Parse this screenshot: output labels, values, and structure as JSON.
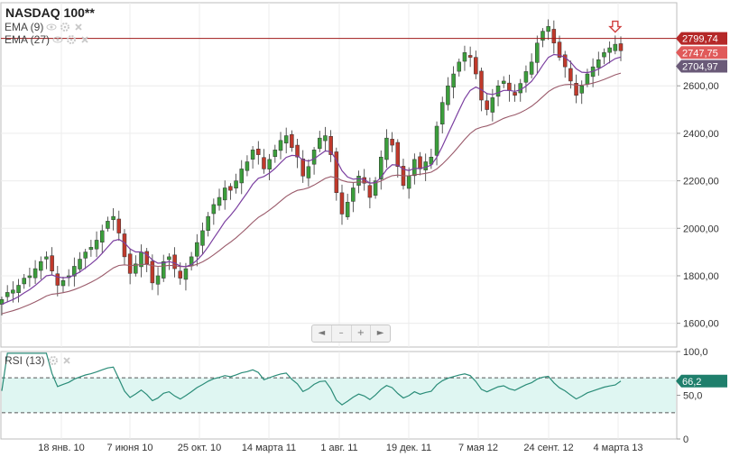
{
  "header": {
    "title": "NASDAQ 100**",
    "indicators": [
      "EMA (9)",
      "EMA (27)"
    ],
    "rsi_label": "RSI (13)"
  },
  "navigator": {
    "prev": "◄",
    "zoom_out": "–",
    "zoom_in": "+",
    "next": "►"
  },
  "colors": {
    "up": "#3b9e3b",
    "down": "#c0392b",
    "ema9": "#7b3fa0",
    "ema27": "#9a5a6a",
    "rsi": "#2a8c78",
    "rsi_band": "#dff6f2",
    "ref_line": "#a01818",
    "tag_ref": "#b52828",
    "tag_close": "#e05a5a",
    "tag_ema": "#6a5a78",
    "tag_rsi": "#1f7f6c"
  },
  "chart_data": [
    {
      "type": "candlestick",
      "title": "NASDAQ 100**",
      "ylim": [
        1500,
        2950
      ],
      "y_ticks": [
        "1600,00",
        "1800,00",
        "2000,00",
        "2200,00",
        "2400,00",
        "2600,00"
      ],
      "x_ticks": [
        "18 янв. 10",
        "7 июня 10",
        "25 окт. 10",
        "14 марта 11",
        "1 авг. 11",
        "19 дек. 11",
        "7 мая 12",
        "24 сент. 12",
        "4 марта 13"
      ],
      "series": [
        {
          "name": "EMA (9)"
        },
        {
          "name": "EMA (27)"
        }
      ],
      "close": [
        1700,
        1730,
        1740,
        1760,
        1790,
        1800,
        1830,
        1860,
        1880,
        1820,
        1760,
        1780,
        1800,
        1840,
        1870,
        1900,
        1920,
        1950,
        1990,
        2030,
        2050,
        1980,
        1880,
        1810,
        1850,
        1900,
        1850,
        1770,
        1800,
        1860,
        1880,
        1830,
        1790,
        1830,
        1880,
        1940,
        1990,
        2050,
        2100,
        2130,
        2170,
        2160,
        2200,
        2250,
        2280,
        2330,
        2310,
        2250,
        2290,
        2330,
        2370,
        2390,
        2340,
        2300,
        2220,
        2260,
        2330,
        2380,
        2390,
        2310,
        2150,
        2060,
        2110,
        2170,
        2220,
        2190,
        2130,
        2200,
        2300,
        2380,
        2350,
        2260,
        2180,
        2220,
        2290,
        2250,
        2280,
        2300,
        2430,
        2530,
        2600,
        2650,
        2700,
        2740,
        2720,
        2650,
        2540,
        2500,
        2550,
        2600,
        2620,
        2580,
        2560,
        2610,
        2660,
        2700,
        2780,
        2830,
        2850,
        2780,
        2720,
        2680,
        2620,
        2560,
        2600,
        2650,
        2680,
        2710,
        2740,
        2760,
        2775,
        2747.75
      ],
      "last_close": "2747,75",
      "ema9_last": "2704,97",
      "reference_level": 2799.74,
      "reference_label": "2799,74"
    },
    {
      "type": "line",
      "title": "RSI (13)",
      "ylim": [
        0,
        100
      ],
      "y_ticks": [
        "0",
        "50,0",
        "100,0"
      ],
      "bands": [
        30,
        70
      ],
      "last_value": 66.2,
      "last_label": "66,2"
    }
  ]
}
